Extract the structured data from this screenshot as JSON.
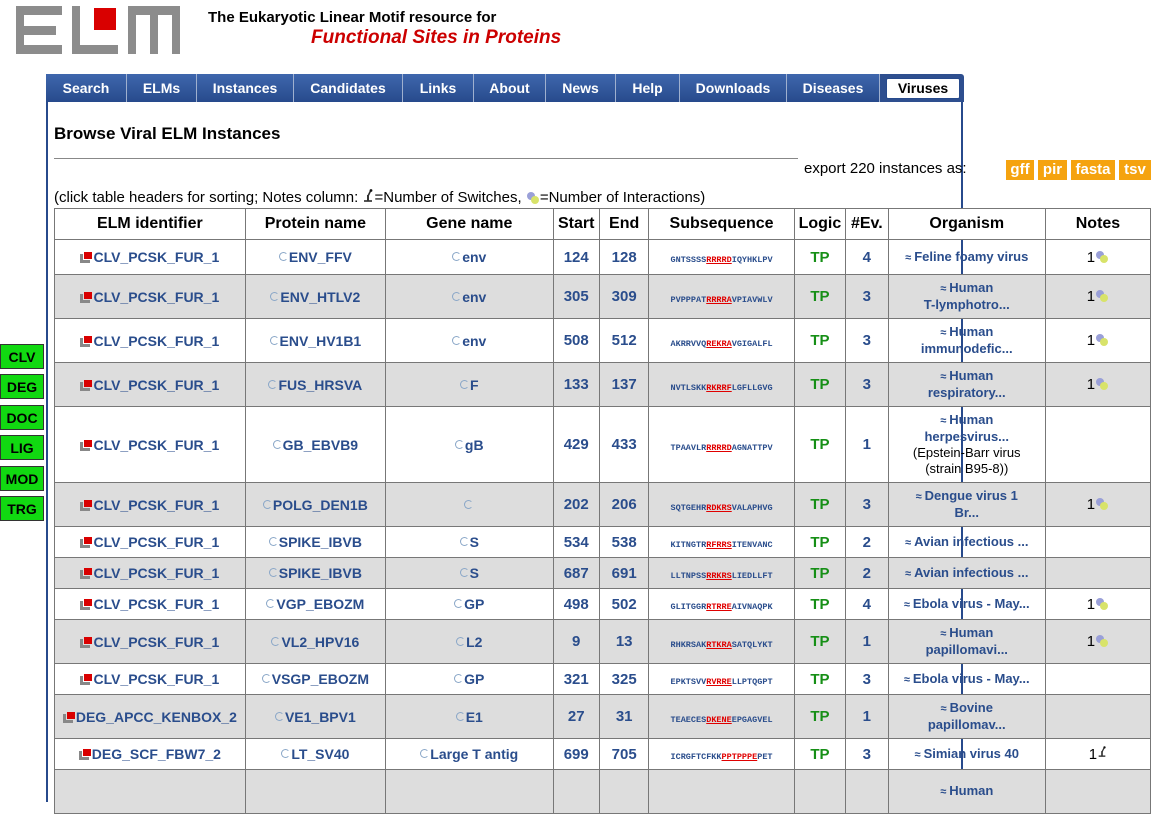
{
  "site": {
    "title": "The Eukaryotic Linear Motif resource for",
    "subtitle": "Functional Sites in Proteins"
  },
  "nav": [
    {
      "label": "Search"
    },
    {
      "label": "ELMs"
    },
    {
      "label": "Instances"
    },
    {
      "label": "Candidates"
    },
    {
      "label": "Links"
    },
    {
      "label": "About"
    },
    {
      "label": "News"
    },
    {
      "label": "Help"
    },
    {
      "label": "Downloads"
    },
    {
      "label": "Diseases"
    },
    {
      "label": "Viruses",
      "active": true
    }
  ],
  "side_labels": [
    "CLV",
    "DEG",
    "DOC",
    "LIG",
    "MOD",
    "TRG"
  ],
  "page_title": "Browse Viral ELM Instances",
  "export": {
    "text": "export 220 instances as:",
    "formats": [
      "gff",
      "pir",
      "fasta",
      "tsv"
    ]
  },
  "hint": {
    "before": "(click table headers for sorting; Notes column:",
    "switches": "=Number of Switches,",
    "interactions": "=Number of Interactions)"
  },
  "table": {
    "headers": [
      "ELM identifier",
      "Protein name",
      "Gene name",
      "Start",
      "End",
      "Subsequence",
      "Logic",
      "#Ev.",
      "Organism",
      "Notes"
    ],
    "rows": [
      {
        "elm": "CLV_PCSK_FUR_1",
        "protein": "ENV_FFV",
        "gene": "env",
        "start": "124",
        "end": "128",
        "seq_pre": "GNTSSSS",
        "seq_hl": "RRRRD",
        "seq_post": "IQYHKLPV",
        "logic": "TP",
        "ev": "4",
        "org": [
          "Feline foamy virus"
        ],
        "org_extra": [],
        "notes": "1",
        "note_icon": "interaction"
      },
      {
        "elm": "CLV_PCSK_FUR_1",
        "protein": "ENV_HTLV2",
        "gene": "env",
        "start": "305",
        "end": "309",
        "seq_pre": "PVPPPAT",
        "seq_hl": "RRRRA",
        "seq_post": "VPIAVWLV",
        "logic": "TP",
        "ev": "3",
        "org": [
          "Human",
          "T-lymphotro..."
        ],
        "org_extra": [],
        "notes": "1",
        "note_icon": "interaction"
      },
      {
        "elm": "CLV_PCSK_FUR_1",
        "protein": "ENV_HV1B1",
        "gene": "env",
        "start": "508",
        "end": "512",
        "seq_pre": "AKRRVVQ",
        "seq_hl": "REKRA",
        "seq_post": "VGIGALFL",
        "logic": "TP",
        "ev": "3",
        "org": [
          "Human",
          "immunodefic..."
        ],
        "org_extra": [],
        "notes": "1",
        "note_icon": "interaction"
      },
      {
        "elm": "CLV_PCSK_FUR_1",
        "protein": "FUS_HRSVA",
        "gene": "F",
        "start": "133",
        "end": "137",
        "seq_pre": "NVTLSKK",
        "seq_hl": "RKRRF",
        "seq_post": "LGFLLGVG",
        "logic": "TP",
        "ev": "3",
        "org": [
          "Human",
          "respiratory..."
        ],
        "org_extra": [],
        "notes": "1",
        "note_icon": "interaction"
      },
      {
        "elm": "CLV_PCSK_FUR_1",
        "protein": "GB_EBVB9",
        "gene": "gB",
        "start": "429",
        "end": "433",
        "seq_pre": "TPAAVLR",
        "seq_hl": "RRRRD",
        "seq_post": "AGNATTPV",
        "logic": "TP",
        "ev": "1",
        "org": [
          "Human",
          "herpesvirus..."
        ],
        "org_extra": [
          "(Epstein-Barr virus",
          "(strain B95-8))"
        ],
        "notes": "",
        "note_icon": ""
      },
      {
        "elm": "CLV_PCSK_FUR_1",
        "protein": "POLG_DEN1B",
        "gene": "",
        "start": "202",
        "end": "206",
        "seq_pre": "SQTGEHR",
        "seq_hl": "RDKRS",
        "seq_post": "VALAPHVG",
        "logic": "TP",
        "ev": "3",
        "org": [
          "Dengue virus 1",
          "Br..."
        ],
        "org_extra": [],
        "notes": "1",
        "note_icon": "interaction"
      },
      {
        "elm": "CLV_PCSK_FUR_1",
        "protein": "SPIKE_IBVB",
        "gene": "S",
        "start": "534",
        "end": "538",
        "seq_pre": "KITNGTR",
        "seq_hl": "RFRRS",
        "seq_post": "ITENVANC",
        "logic": "TP",
        "ev": "2",
        "org": [
          "Avian infectious ..."
        ],
        "org_extra": [],
        "notes": "",
        "note_icon": ""
      },
      {
        "elm": "CLV_PCSK_FUR_1",
        "protein": "SPIKE_IBVB",
        "gene": "S",
        "start": "687",
        "end": "691",
        "seq_pre": "LLTNPSS",
        "seq_hl": "RRKRS",
        "seq_post": "LIEDLLFT",
        "logic": "TP",
        "ev": "2",
        "org": [
          "Avian infectious ..."
        ],
        "org_extra": [],
        "notes": "",
        "note_icon": ""
      },
      {
        "elm": "CLV_PCSK_FUR_1",
        "protein": "VGP_EBOZM",
        "gene": "GP",
        "start": "498",
        "end": "502",
        "seq_pre": "GLITGGR",
        "seq_hl": "RTRRE",
        "seq_post": "AIVNAQPK",
        "logic": "TP",
        "ev": "4",
        "org": [
          "Ebola virus - May..."
        ],
        "org_extra": [],
        "notes": "1",
        "note_icon": "interaction"
      },
      {
        "elm": "CLV_PCSK_FUR_1",
        "protein": "VL2_HPV16",
        "gene": "L2",
        "start": "9",
        "end": "13",
        "seq_pre": "RHKRSAK",
        "seq_hl": "RTKRA",
        "seq_post": "SATQLYKT",
        "logic": "TP",
        "ev": "1",
        "org": [
          "Human",
          "papillomavi..."
        ],
        "org_extra": [],
        "notes": "1",
        "note_icon": "interaction"
      },
      {
        "elm": "CLV_PCSK_FUR_1",
        "protein": "VSGP_EBOZM",
        "gene": "GP",
        "start": "321",
        "end": "325",
        "seq_pre": "EPKTSVV",
        "seq_hl": "RVRRE",
        "seq_post": "LLPTQGPT",
        "logic": "TP",
        "ev": "3",
        "org": [
          "Ebola virus - May..."
        ],
        "org_extra": [],
        "notes": "",
        "note_icon": ""
      },
      {
        "elm": "DEG_APCC_KENBOX_2",
        "protein": "VE1_BPV1",
        "gene": "E1",
        "start": "27",
        "end": "31",
        "seq_pre": "TEAECES",
        "seq_hl": "DKENE",
        "seq_post": "EPGAGVEL",
        "logic": "TP",
        "ev": "1",
        "org": [
          "Bovine",
          "papillomav..."
        ],
        "org_extra": [],
        "notes": "",
        "note_icon": ""
      },
      {
        "elm": "DEG_SCF_FBW7_2",
        "protein": "LT_SV40",
        "gene": "Large T antig",
        "start": "699",
        "end": "705",
        "seq_pre": "ICRGFTCFKK",
        "seq_hl": "PPTPPPE",
        "seq_post": "PET",
        "logic": "TP",
        "ev": "3",
        "org": [
          "Simian virus 40"
        ],
        "org_extra": [],
        "notes": "1",
        "note_icon": "switch"
      },
      {
        "elm": "",
        "protein": "",
        "gene": "",
        "start": "",
        "end": "",
        "seq_pre": "",
        "seq_hl": "",
        "seq_post": "",
        "logic": "",
        "ev": "",
        "org": [
          "Human"
        ],
        "org_extra": [],
        "notes": "",
        "note_icon": ""
      }
    ]
  }
}
